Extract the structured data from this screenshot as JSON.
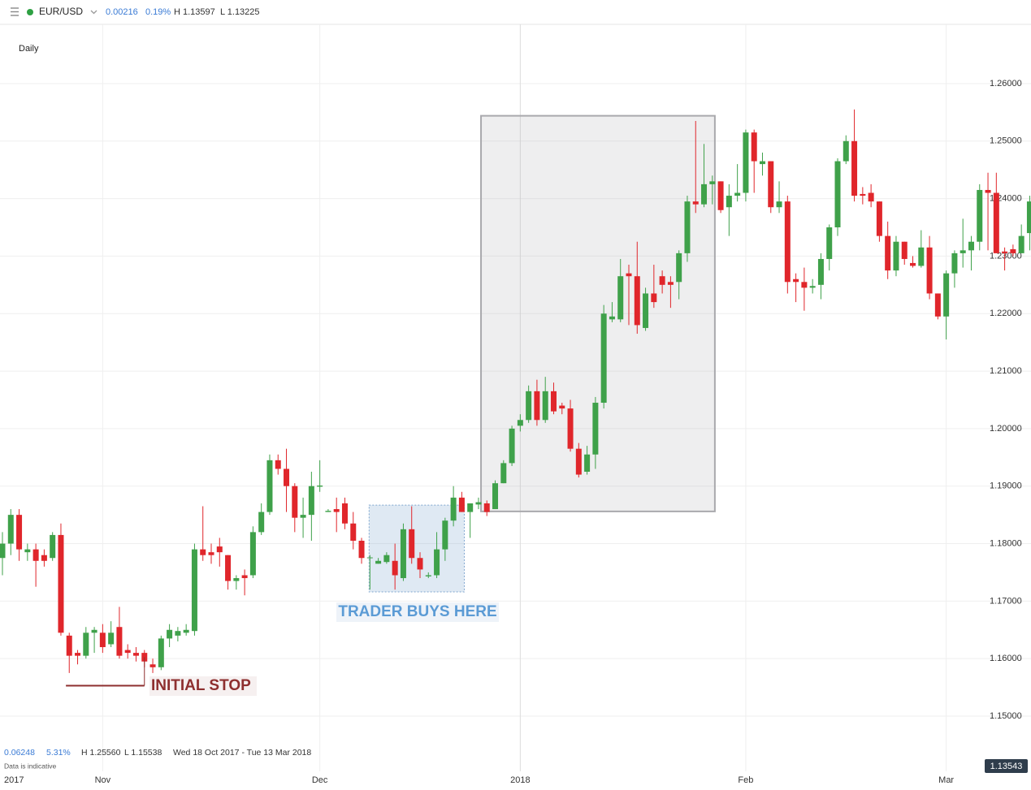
{
  "header": {
    "symbol": "EUR/USD",
    "change": "0.00216",
    "change_pct": "0.19%",
    "high": "H 1.13597",
    "low": "L 1.13225",
    "interval": "Daily",
    "last_price": "1.13543"
  },
  "footer": {
    "range_change": "0.06248",
    "range_pct": "5.31%",
    "range_high": "H 1.25560",
    "range_low": "L 1.15538",
    "dates": "Wed 18 Oct 2017 - Tue 13 Mar 2018",
    "note": "Data is indicative"
  },
  "chart_data": {
    "type": "candlestick",
    "categories": [
      null,
      "2017",
      null,
      null,
      null,
      null,
      null,
      null,
      null,
      null,
      null,
      null,
      "Nov",
      null,
      null,
      null,
      null,
      null,
      null,
      null,
      null,
      null,
      null,
      null,
      null,
      null,
      null,
      null,
      null,
      null,
      null,
      null,
      null,
      null,
      null,
      null,
      null,
      null,
      "Dec",
      null,
      null,
      null,
      null,
      null,
      null,
      null,
      null,
      null,
      null,
      null,
      null,
      null,
      null,
      null,
      null,
      null,
      null,
      null,
      null,
      null,
      null,
      null,
      "2018",
      null,
      null,
      null,
      null,
      null,
      null,
      null,
      null,
      null,
      null,
      null,
      null,
      null,
      null,
      null,
      null,
      null,
      null,
      null,
      null,
      null,
      null,
      null,
      null,
      null,
      null,
      "Feb",
      null,
      null,
      null,
      null,
      null,
      null,
      null,
      null,
      null,
      null,
      null,
      null,
      null,
      null,
      null,
      null,
      null,
      null,
      null,
      null,
      null,
      null,
      null,
      "Mar",
      null,
      null,
      null,
      null,
      null,
      null,
      null,
      null,
      null,
      null
    ],
    "ohlc": [
      [
        1.1775,
        1.182,
        1.1745,
        1.18
      ],
      [
        1.18,
        1.186,
        1.178,
        1.185
      ],
      [
        1.185,
        1.186,
        1.177,
        1.179
      ],
      [
        1.1785,
        1.18,
        1.177,
        1.179
      ],
      [
        1.179,
        1.18,
        1.1725,
        1.177
      ],
      [
        1.178,
        1.179,
        1.176,
        1.177
      ],
      [
        1.1775,
        1.182,
        1.177,
        1.1815
      ],
      [
        1.1815,
        1.1835,
        1.164,
        1.1645
      ],
      [
        1.164,
        1.1645,
        1.1575,
        1.1605
      ],
      [
        1.161,
        1.1615,
        1.159,
        1.1605
      ],
      [
        1.1605,
        1.1655,
        1.16,
        1.1645
      ],
      [
        1.1645,
        1.1655,
        1.161,
        1.165
      ],
      [
        1.1645,
        1.166,
        1.161,
        1.162
      ],
      [
        1.1625,
        1.1665,
        1.162,
        1.1645
      ],
      [
        1.1655,
        1.169,
        1.16,
        1.1605
      ],
      [
        1.1615,
        1.1625,
        1.16,
        1.161
      ],
      [
        1.161,
        1.162,
        1.1595,
        1.1605
      ],
      [
        1.161,
        1.1615,
        1.1585,
        1.1595
      ],
      [
        1.159,
        1.16,
        1.1575,
        1.1585
      ],
      [
        1.1585,
        1.164,
        1.158,
        1.1635
      ],
      [
        1.1635,
        1.166,
        1.162,
        1.165
      ],
      [
        1.164,
        1.1655,
        1.163,
        1.1648
      ],
      [
        1.1645,
        1.166,
        1.164,
        1.165
      ],
      [
        1.1648,
        1.18,
        1.164,
        1.179
      ],
      [
        1.179,
        1.1865,
        1.177,
        1.178
      ],
      [
        1.1785,
        1.18,
        1.1765,
        1.178
      ],
      [
        1.1795,
        1.181,
        1.176,
        1.1785
      ],
      [
        1.178,
        1.178,
        1.172,
        1.1735
      ],
      [
        1.1735,
        1.1745,
        1.172,
        1.174
      ],
      [
        1.1745,
        1.1755,
        1.171,
        1.174
      ],
      [
        1.1745,
        1.183,
        1.174,
        1.182
      ],
      [
        1.182,
        1.187,
        1.1815,
        1.1855
      ],
      [
        1.1855,
        1.1955,
        1.185,
        1.1945
      ],
      [
        1.1945,
        1.1955,
        1.192,
        1.193
      ],
      [
        1.193,
        1.1965,
        1.1855,
        1.19
      ],
      [
        1.19,
        1.1905,
        1.182,
        1.1845
      ],
      [
        1.1845,
        1.188,
        1.181,
        1.185
      ],
      [
        1.185,
        1.1925,
        1.1805,
        1.19
      ],
      [
        1.1899,
        1.1945,
        1.189,
        1.1901
      ],
      [
        1.1855,
        1.186,
        1.1855,
        1.1857
      ],
      [
        1.186,
        1.188,
        1.182,
        1.1855
      ],
      [
        1.187,
        1.188,
        1.1825,
        1.1835
      ],
      [
        1.1835,
        1.1855,
        1.179,
        1.1805
      ],
      [
        1.1805,
        1.181,
        1.1765,
        1.1775
      ],
      [
        1.1775,
        1.178,
        1.172,
        1.1776
      ],
      [
        1.1765,
        1.1775,
        1.1765,
        1.177
      ],
      [
        1.1768,
        1.1785,
        1.1765,
        1.178
      ],
      [
        1.177,
        1.18,
        1.172,
        1.1745
      ],
      [
        1.174,
        1.1835,
        1.1735,
        1.1825
      ],
      [
        1.1825,
        1.1865,
        1.1765,
        1.1775
      ],
      [
        1.1775,
        1.1785,
        1.174,
        1.1755
      ],
      [
        1.1743,
        1.175,
        1.174,
        1.1745
      ],
      [
        1.1745,
        1.182,
        1.174,
        1.179
      ],
      [
        1.179,
        1.1845,
        1.177,
        1.184
      ],
      [
        1.184,
        1.19,
        1.183,
        1.188
      ],
      [
        1.188,
        1.189,
        1.1855,
        1.1855
      ],
      [
        1.1855,
        1.187,
        1.181,
        1.187
      ],
      [
        1.1868,
        1.188,
        1.186,
        1.1872
      ],
      [
        1.187,
        1.1875,
        1.1848,
        1.1855
      ],
      [
        1.186,
        1.191,
        1.186,
        1.1905
      ],
      [
        1.1905,
        1.1945,
        1.1905,
        1.194
      ],
      [
        1.194,
        1.2005,
        1.1935,
        1.2
      ],
      [
        1.2005,
        1.2025,
        1.1995,
        1.2015
      ],
      [
        1.2015,
        1.2075,
        1.201,
        1.2065
      ],
      [
        1.2065,
        1.2085,
        1.2005,
        1.2015
      ],
      [
        1.2015,
        1.209,
        1.201,
        1.2065
      ],
      [
        1.2065,
        1.208,
        1.2025,
        1.203
      ],
      [
        1.204,
        1.2045,
        1.2025,
        1.2035
      ],
      [
        1.2035,
        1.205,
        1.196,
        1.1965
      ],
      [
        1.1965,
        1.1975,
        1.1915,
        1.192
      ],
      [
        1.1925,
        1.197,
        1.192,
        1.1955
      ],
      [
        1.1955,
        1.2055,
        1.193,
        1.2045
      ],
      [
        1.2045,
        1.2215,
        1.2035,
        1.22
      ],
      [
        1.219,
        1.222,
        1.2185,
        1.2195
      ],
      [
        1.219,
        1.2295,
        1.2185,
        1.2265
      ],
      [
        1.227,
        1.2285,
        1.218,
        1.2265
      ],
      [
        1.2265,
        1.2325,
        1.2165,
        1.218
      ],
      [
        1.2175,
        1.2245,
        1.217,
        1.2235
      ],
      [
        1.2235,
        1.2285,
        1.221,
        1.222
      ],
      [
        1.2265,
        1.2275,
        1.2235,
        1.225
      ],
      [
        1.2255,
        1.2265,
        1.221,
        1.225
      ],
      [
        1.2255,
        1.231,
        1.2225,
        1.2305
      ],
      [
        1.2305,
        1.2405,
        1.229,
        1.2395
      ],
      [
        1.2395,
        1.2535,
        1.2375,
        1.239
      ],
      [
        1.239,
        1.2495,
        1.2385,
        1.2425
      ],
      [
        1.2425,
        1.244,
        1.239,
        1.243
      ],
      [
        1.243,
        1.243,
        1.2375,
        1.238
      ],
      [
        1.2385,
        1.2425,
        1.2335,
        1.2405
      ],
      [
        1.2405,
        1.246,
        1.2395,
        1.241
      ],
      [
        1.241,
        1.252,
        1.2395,
        1.2515
      ],
      [
        1.2515,
        1.252,
        1.241,
        1.2465
      ],
      [
        1.246,
        1.248,
        1.244,
        1.2465
      ],
      [
        1.2465,
        1.2465,
        1.2375,
        1.2385
      ],
      [
        1.2385,
        1.243,
        1.2375,
        1.2395
      ],
      [
        1.2395,
        1.2405,
        1.2235,
        1.2255
      ],
      [
        1.226,
        1.227,
        1.222,
        1.2255
      ],
      [
        1.2255,
        1.228,
        1.2205,
        1.2245
      ],
      [
        1.2245,
        1.226,
        1.2235,
        1.2248
      ],
      [
        1.225,
        1.2305,
        1.2225,
        1.2295
      ],
      [
        1.2295,
        1.2355,
        1.2275,
        1.235
      ],
      [
        1.235,
        1.247,
        1.2335,
        1.2465
      ],
      [
        1.2465,
        1.251,
        1.246,
        1.25
      ],
      [
        1.25,
        1.2555,
        1.2395,
        1.2405
      ],
      [
        1.2408,
        1.242,
        1.239,
        1.2405
      ],
      [
        1.241,
        1.2425,
        1.2385,
        1.2395
      ],
      [
        1.2395,
        1.2395,
        1.2325,
        1.2335
      ],
      [
        1.2335,
        1.236,
        1.226,
        1.2275
      ],
      [
        1.2275,
        1.2335,
        1.2265,
        1.2325
      ],
      [
        1.2325,
        1.2325,
        1.2285,
        1.2295
      ],
      [
        1.2288,
        1.23,
        1.228,
        1.2283
      ],
      [
        1.2283,
        1.2345,
        1.228,
        1.2315
      ],
      [
        1.2315,
        1.2335,
        1.2225,
        1.2235
      ],
      [
        1.2235,
        1.2235,
        1.219,
        1.2195
      ],
      [
        1.2195,
        1.2275,
        1.2155,
        1.227
      ],
      [
        1.227,
        1.231,
        1.2245,
        1.2305
      ],
      [
        1.2305,
        1.2365,
        1.228,
        1.231
      ],
      [
        1.231,
        1.2335,
        1.2275,
        1.2325
      ],
      [
        1.2325,
        1.2425,
        1.231,
        1.2415
      ],
      [
        1.2415,
        1.2445,
        1.231,
        1.241
      ],
      [
        1.241,
        1.2445,
        1.2305,
        1.2305
      ],
      [
        1.2308,
        1.2315,
        1.2275,
        1.2305
      ],
      [
        1.2312,
        1.232,
        1.23,
        1.2305
      ],
      [
        1.2305,
        1.2355,
        1.2305,
        1.2335
      ],
      [
        1.234,
        1.2405,
        1.231,
        1.2395
      ]
    ],
    "up_color": "#3fa14a",
    "down_color": "#e0262b",
    "ylim": [
      1.1404,
      1.2703
    ],
    "yticks": [
      {
        "value": 1.15,
        "label": "1.15000"
      },
      {
        "value": 1.16,
        "label": "1.16000"
      },
      {
        "value": 1.17,
        "label": "1.17000"
      },
      {
        "value": 1.18,
        "label": "1.18000"
      },
      {
        "value": 1.19,
        "label": "1.19000"
      },
      {
        "value": 1.2,
        "label": "1.20000"
      },
      {
        "value": 1.21,
        "label": "1.21000"
      },
      {
        "value": 1.22,
        "label": "1.22000"
      },
      {
        "value": 1.23,
        "label": "1.23000"
      },
      {
        "value": 1.24,
        "label": "1.24000"
      },
      {
        "value": 1.25,
        "label": "1.25000"
      },
      {
        "value": 1.26,
        "label": "1.26000"
      }
    ],
    "grid": true,
    "highlights": [
      {
        "xlim": [
          57.3,
          85.3
        ],
        "ylim": [
          1.1856,
          1.2544
        ],
        "color": "#a9a9ad"
      },
      {
        "xlim": [
          43.9,
          55.3
        ],
        "ylim": [
          1.1716,
          1.1867
        ],
        "color": "#7fa6cf"
      }
    ],
    "annotations": [
      {
        "text": "TRADER BUYS HERE",
        "color": "#5b9bd5"
      },
      {
        "text": "INITIAL STOP",
        "color": "#8e2f2f"
      }
    ],
    "stop_line": {
      "value": 1.1553,
      "from": 7.6,
      "to": 17,
      "color": "#8e2f2f"
    }
  }
}
